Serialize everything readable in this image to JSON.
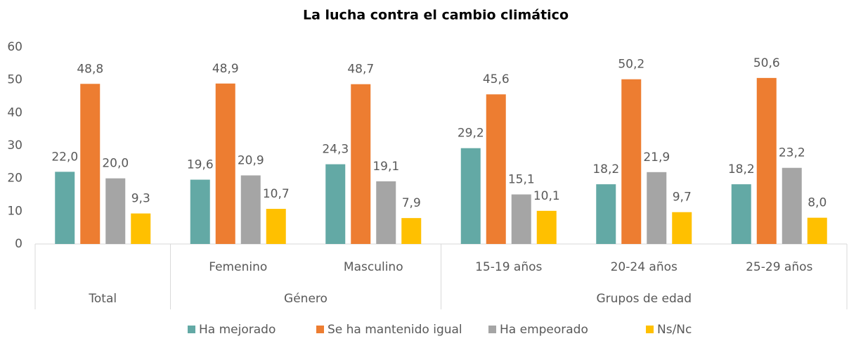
{
  "chart_data": {
    "type": "bar",
    "title": "La lucha contra el cambio climático",
    "categories": [
      null,
      "Femenino",
      "Masculino",
      "15-19 años",
      "20-24 años",
      "25-29 años"
    ],
    "groups": [
      {
        "label": "Total",
        "span": 1
      },
      {
        "label": "Género",
        "span": 2
      },
      {
        "label": "Grupos de edad",
        "span": 3
      }
    ],
    "series": [
      {
        "name": "Ha mejorado",
        "color": "#63a9a5",
        "values": [
          22.0,
          19.6,
          24.3,
          29.2,
          18.2,
          18.2
        ],
        "value_labels": [
          "22,0",
          "19,6",
          "24,3",
          "29,2",
          "18,2",
          "18,2"
        ]
      },
      {
        "name": "Se ha mantenido igual",
        "color": "#ed7d31",
        "values": [
          48.8,
          48.9,
          48.7,
          45.6,
          50.2,
          50.6
        ],
        "value_labels": [
          "48,8",
          "48,9",
          "48,7",
          "45,6",
          "50,2",
          "50,6"
        ]
      },
      {
        "name": "Ha empeorado",
        "color": "#a5a5a5",
        "values": [
          20.0,
          20.9,
          19.1,
          15.1,
          21.9,
          23.2
        ],
        "value_labels": [
          "20,0",
          "20,9",
          "19,1",
          "15,1",
          "21,9",
          "23,2"
        ]
      },
      {
        "name": "Ns/Nc",
        "color": "#ffc000",
        "values": [
          9.3,
          10.7,
          7.9,
          10.1,
          9.7,
          8.0
        ],
        "value_labels": [
          "9,3",
          "10,7",
          "7,9",
          "10,1",
          "9,7",
          "8,0"
        ]
      }
    ],
    "ylim": [
      0,
      60
    ],
    "yticks": [
      0,
      10,
      20,
      30,
      40,
      50,
      60
    ],
    "grid": false,
    "legend": "bottom"
  }
}
